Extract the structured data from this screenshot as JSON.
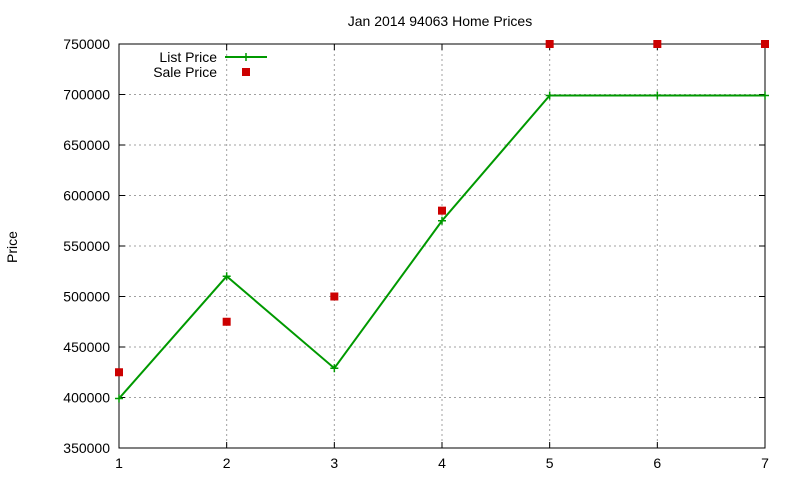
{
  "chart_data": {
    "type": "line",
    "title": "Jan 2014 94063 Home Prices",
    "xlabel": "",
    "ylabel": "Price",
    "xlim": [
      1,
      7
    ],
    "ylim": [
      350000,
      750000
    ],
    "x_ticks": [
      "1",
      "2",
      "3",
      "4",
      "5",
      "6",
      "7"
    ],
    "y_ticks": [
      "350000",
      "400000",
      "450000",
      "500000",
      "550000",
      "600000",
      "650000",
      "700000",
      "750000"
    ],
    "grid": true,
    "legend_position": "top-left",
    "series": [
      {
        "name": "List Price",
        "style": "line-with-plus-markers",
        "color": "#009900",
        "x": [
          1,
          2,
          3,
          4,
          5,
          6,
          7
        ],
        "y": [
          399000,
          520000,
          429000,
          575000,
          699000,
          699000,
          699000
        ]
      },
      {
        "name": "Sale Price",
        "style": "square-markers",
        "color": "#cc0000",
        "x": [
          1,
          2,
          3,
          4,
          5,
          6,
          7
        ],
        "y": [
          425000,
          475000,
          500000,
          585000,
          750000,
          750000,
          750000
        ]
      }
    ]
  }
}
